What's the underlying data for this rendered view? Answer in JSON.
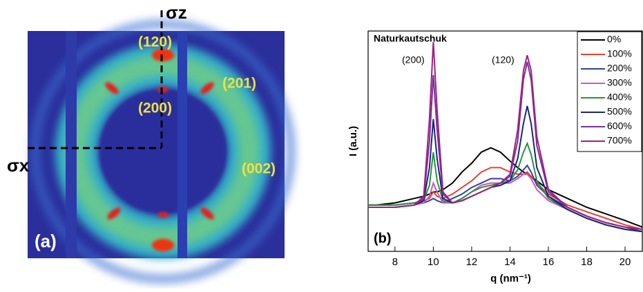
{
  "chart_data": {
    "type": "line",
    "x": [
      6.6,
      7,
      8,
      9,
      9.5,
      9.8,
      10,
      10.2,
      10.5,
      11,
      11.5,
      12,
      12.5,
      13,
      13.5,
      14,
      14.4,
      14.7,
      14.9,
      15.1,
      15.4,
      16,
      17,
      18,
      19,
      20,
      20.9
    ],
    "series": [
      {
        "name": "0%",
        "color": "#000000",
        "values": [
          21,
          21,
          22,
          24,
          25,
          26,
          27,
          27,
          28,
          31,
          36,
          40,
          45,
          47,
          45,
          41,
          38,
          36,
          35,
          34,
          32,
          28,
          24,
          20,
          17,
          14,
          11
        ]
      },
      {
        "name": "100%",
        "color": "#e8412b",
        "values": [
          21,
          21,
          21,
          22,
          23,
          24,
          27,
          25,
          24,
          26,
          29,
          32,
          36,
          38,
          38,
          36,
          35,
          35,
          36,
          34,
          31,
          26,
          21,
          18,
          15,
          12,
          10
        ]
      },
      {
        "name": "200%",
        "color": "#2f3fa8",
        "values": [
          21,
          21,
          21,
          22,
          22,
          23,
          24,
          23,
          22,
          24,
          26,
          29,
          31,
          33,
          33,
          32,
          34,
          37,
          39,
          36,
          30,
          25,
          20,
          16,
          13,
          11,
          9
        ]
      },
      {
        "name": "300%",
        "color": "#d355b7",
        "values": [
          20,
          20,
          20,
          21,
          22,
          25,
          31,
          27,
          22,
          22,
          24,
          27,
          30,
          31,
          31,
          31,
          33,
          35,
          35,
          33,
          28,
          23,
          19,
          15,
          12,
          10,
          9
        ]
      },
      {
        "name": "400%",
        "color": "#22963a",
        "values": [
          21,
          21,
          21,
          22,
          23,
          30,
          45,
          32,
          23,
          22,
          24,
          27,
          29,
          30,
          31,
          32,
          37,
          45,
          49,
          44,
          32,
          24,
          19,
          15,
          12,
          10,
          9
        ]
      },
      {
        "name": "500%",
        "color": "#1a237e",
        "values": [
          20,
          20,
          20,
          21,
          23,
          38,
          60,
          42,
          24,
          22,
          23,
          25,
          27,
          29,
          30,
          32,
          42,
          58,
          66,
          58,
          38,
          25,
          19,
          15,
          12,
          10,
          9
        ]
      },
      {
        "name": "600%",
        "color": "#7a2fa0",
        "values": [
          20,
          20,
          20,
          21,
          24,
          50,
          80,
          55,
          26,
          22,
          23,
          25,
          27,
          29,
          31,
          34,
          50,
          78,
          86,
          78,
          48,
          27,
          20,
          16,
          13,
          11,
          10
        ]
      },
      {
        "name": "700%",
        "color": "#a0207f",
        "values": [
          20,
          20,
          20,
          21,
          25,
          60,
          95,
          64,
          27,
          22,
          23,
          25,
          27,
          29,
          31,
          35,
          55,
          82,
          89,
          82,
          52,
          28,
          20,
          16,
          13,
          11,
          10
        ]
      }
    ],
    "xlim": [
      6.6,
      20.9
    ],
    "ylim": [
      0,
      100
    ],
    "xticks": [
      8,
      10,
      12,
      14,
      16,
      18,
      20
    ],
    "xlabel": "q (nm⁻¹)",
    "ylabel": "I (a.u.)",
    "annotations": [
      "Naturkautschuk",
      "(200)",
      "(120)",
      "(b)"
    ],
    "legend": "upper right"
  },
  "image_labels": {
    "sigma_z": "σz",
    "sigma_x": "σx",
    "reflections": [
      "(120)",
      "(201)",
      "(200)",
      "(002)"
    ],
    "panel": "(a)"
  }
}
